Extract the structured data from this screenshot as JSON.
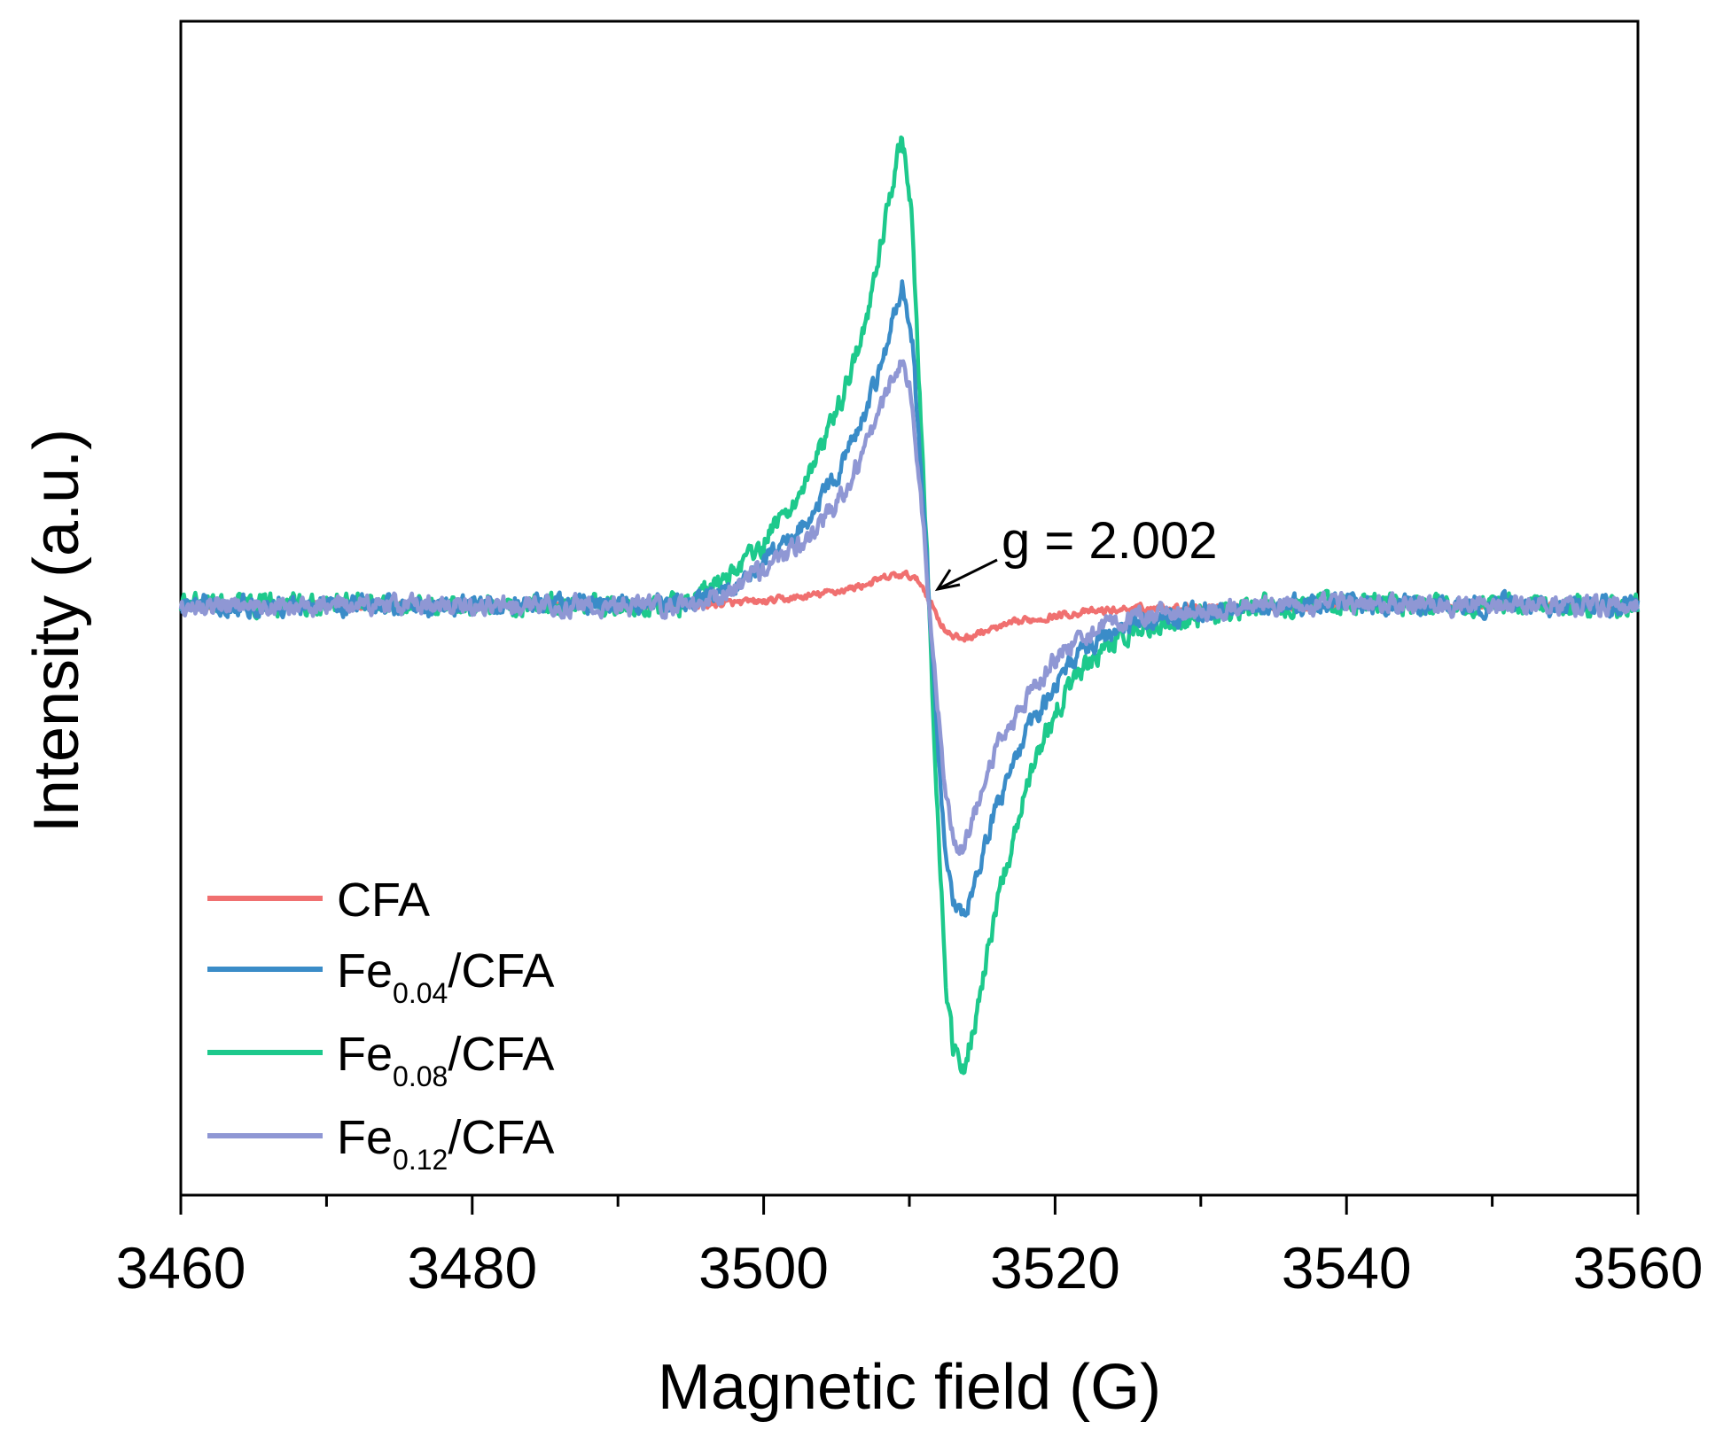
{
  "chart_data": {
    "type": "line",
    "title": "",
    "xlabel": "Magnetic field (G)",
    "ylabel": "Intensity (a.u.)",
    "xlim": [
      3460,
      3560
    ],
    "ylim": [
      -1,
      1
    ],
    "xticks": [
      3460,
      3480,
      3500,
      3520,
      3540,
      3560
    ],
    "xticks_minor": [
      3470,
      3490,
      3510,
      3530,
      3550
    ],
    "yticks": [],
    "grid": false,
    "legend_position": "bottom-left",
    "annotation": {
      "text": "g = 2.002",
      "x": 3511.5,
      "y": 0.0
    },
    "series": [
      {
        "name": "CFA",
        "legend": {
          "main": "CFA",
          "sub": "",
          "suffix": ""
        },
        "color": "#F07070",
        "noise": 0.006,
        "points": [
          [
            3460,
            0.0
          ],
          [
            3495,
            0.0
          ],
          [
            3500,
            0.007
          ],
          [
            3503,
            0.018
          ],
          [
            3506,
            0.035
          ],
          [
            3509,
            0.062
          ],
          [
            3510,
            0.062
          ],
          [
            3510.8,
            0.045
          ],
          [
            3511.4,
            0.01
          ],
          [
            3512.2,
            -0.04
          ],
          [
            3513,
            -0.068
          ],
          [
            3514,
            -0.068
          ],
          [
            3515,
            -0.056
          ],
          [
            3518,
            -0.032
          ],
          [
            3521,
            -0.018
          ],
          [
            3525,
            -0.008
          ],
          [
            3530,
            -0.003
          ],
          [
            3560,
            0.0
          ]
        ]
      },
      {
        "name": "Fe0.04/CFA",
        "legend": {
          "main": "Fe",
          "sub": "0.04",
          "suffix": "/CFA"
        },
        "color": "#3A8CC8",
        "noise": 0.016,
        "points": [
          [
            3460,
            0.0
          ],
          [
            3494,
            0.0
          ],
          [
            3497,
            0.02
          ],
          [
            3500,
            0.085
          ],
          [
            3503,
            0.18
          ],
          [
            3505,
            0.27
          ],
          [
            3507,
            0.4
          ],
          [
            3508.5,
            0.55
          ],
          [
            3509.5,
            0.67
          ],
          [
            3510.2,
            0.55
          ],
          [
            3510.8,
            0.28
          ],
          [
            3511.3,
            0.04
          ],
          [
            3511.8,
            -0.22
          ],
          [
            3512.5,
            -0.52
          ],
          [
            3513,
            -0.62
          ],
          [
            3513.6,
            -0.66
          ],
          [
            3514.5,
            -0.57
          ],
          [
            3516,
            -0.42
          ],
          [
            3518,
            -0.27
          ],
          [
            3520,
            -0.16
          ],
          [
            3522,
            -0.09
          ],
          [
            3525,
            -0.04
          ],
          [
            3530,
            -0.015
          ],
          [
            3535,
            0.0
          ],
          [
            3560,
            0.0
          ]
        ]
      },
      {
        "name": "Fe0.08/CFA",
        "legend": {
          "main": "Fe",
          "sub": "0.08",
          "suffix": "/CFA"
        },
        "color": "#1DC98C",
        "noise": 0.018,
        "points": [
          [
            3460,
            0.0
          ],
          [
            3494,
            0.0
          ],
          [
            3497,
            0.045
          ],
          [
            3500,
            0.13
          ],
          [
            3503,
            0.26
          ],
          [
            3505,
            0.4
          ],
          [
            3507,
            0.58
          ],
          [
            3508.5,
            0.83
          ],
          [
            3509.5,
            0.99
          ],
          [
            3510.2,
            0.8
          ],
          [
            3510.8,
            0.38
          ],
          [
            3511.3,
            0.04
          ],
          [
            3511.8,
            -0.35
          ],
          [
            3512.5,
            -0.78
          ],
          [
            3513,
            -0.93
          ],
          [
            3513.6,
            -0.98
          ],
          [
            3514.5,
            -0.87
          ],
          [
            3516,
            -0.62
          ],
          [
            3518,
            -0.38
          ],
          [
            3520,
            -0.22
          ],
          [
            3522,
            -0.13
          ],
          [
            3525,
            -0.06
          ],
          [
            3530,
            -0.02
          ],
          [
            3535,
            0.0
          ],
          [
            3560,
            0.0
          ]
        ]
      },
      {
        "name": "Fe0.12/CFA",
        "legend": {
          "main": "Fe",
          "sub": "0.12",
          "suffix": "/CFA"
        },
        "color": "#8F97D4",
        "noise": 0.016,
        "points": [
          [
            3460,
            0.0
          ],
          [
            3494,
            0.0
          ],
          [
            3497,
            0.02
          ],
          [
            3500,
            0.075
          ],
          [
            3503,
            0.14
          ],
          [
            3505,
            0.21
          ],
          [
            3507,
            0.33
          ],
          [
            3508.5,
            0.45
          ],
          [
            3509.5,
            0.52
          ],
          [
            3510.2,
            0.42
          ],
          [
            3510.8,
            0.22
          ],
          [
            3511.3,
            0.03
          ],
          [
            3511.8,
            -0.16
          ],
          [
            3512.5,
            -0.4
          ],
          [
            3513,
            -0.48
          ],
          [
            3513.6,
            -0.51
          ],
          [
            3514.5,
            -0.43
          ],
          [
            3516,
            -0.3
          ],
          [
            3518,
            -0.2
          ],
          [
            3520,
            -0.11
          ],
          [
            3522,
            -0.06
          ],
          [
            3525,
            -0.03
          ],
          [
            3530,
            -0.01
          ],
          [
            3535,
            0.0
          ],
          [
            3560,
            0.0
          ]
        ]
      }
    ]
  }
}
